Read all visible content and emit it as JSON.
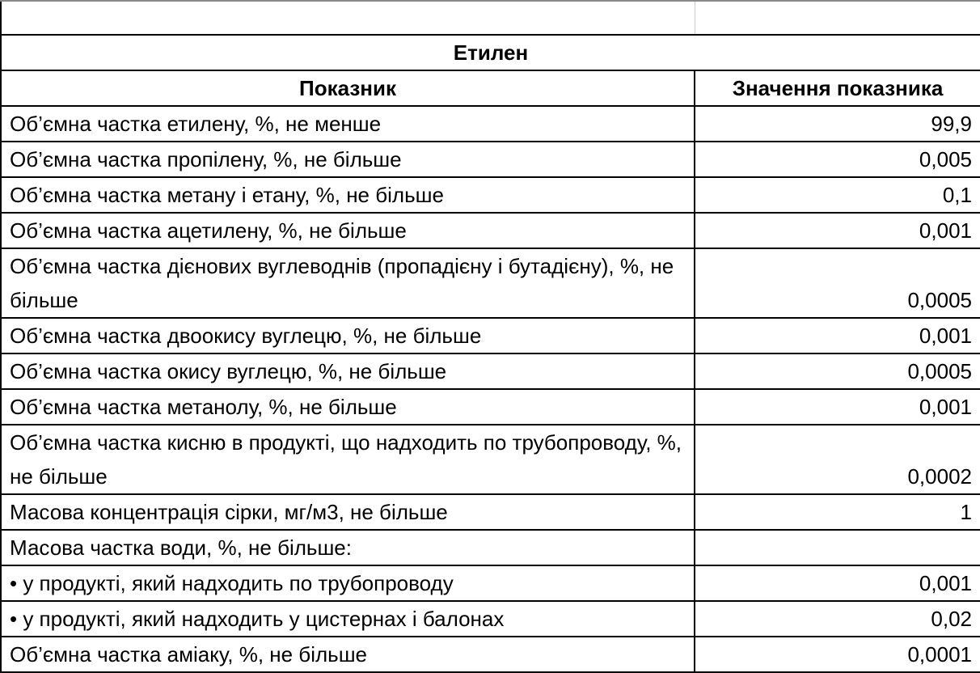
{
  "title": "Етилен",
  "headers": {
    "indicator": "Показник",
    "value": "Значення показника"
  },
  "rows": [
    {
      "label": "Об’ємна частка етилену, %, не менше",
      "value": "99,9"
    },
    {
      "label": "Об’ємна частка пропілену, %, не більше",
      "value": "0,005"
    },
    {
      "label": "Об’ємна частка метану і етану, %, не більше",
      "value": "0,1"
    },
    {
      "label": "Об’ємна частка ацетилену, %, не більше",
      "value": "0,001"
    },
    {
      "label": "Об’ємна частка дієнових вуглеводнів (пропадієну і бутадієну), %, не більше",
      "value": "0,0005"
    },
    {
      "label": "Об’ємна частка двоокису вуглецю, %, не більше",
      "value": "0,001"
    },
    {
      "label": "Об’ємна частка окису вуглецю, %, не більше",
      "value": "0,0005"
    },
    {
      "label": "Об’ємна частка метанолу, %, не більше",
      "value": "0,001"
    },
    {
      "label": "Об’ємна частка кисню в продукті, що надходить по трубопроводу, %, не більше",
      "value": "0,0002"
    },
    {
      "label": "Масова концентрація сірки, мг/м3, не більше",
      "value": "1"
    },
    {
      "label": "Масова частка води, %, не більше:",
      "value": ""
    },
    {
      "label": "• у продукті, який надходить по трубопроводу",
      "value": "0,001"
    },
    {
      "label": "• у продукті, який надходить у цистернах і балонах",
      "value": "0,02"
    },
    {
      "label": "Об’ємна частка аміаку, %, не більше",
      "value": "0,0001"
    }
  ]
}
